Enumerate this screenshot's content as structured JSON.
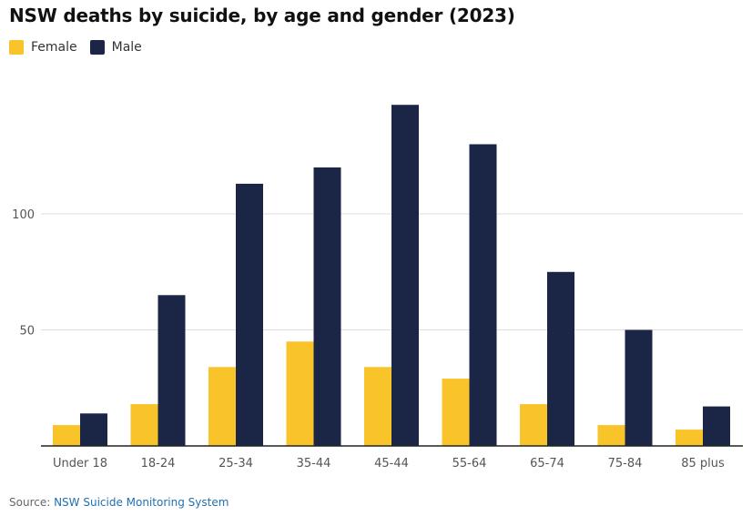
{
  "title": "NSW deaths by suicide, by age and gender (2023)",
  "legend": {
    "female_label": "Female",
    "male_label": "Male"
  },
  "colors": {
    "female": "#f9c32a",
    "male": "#1b2646",
    "grid": "#dddddd",
    "axis": "#222222",
    "tick_text": "#555555"
  },
  "source": {
    "prefix": "Source: ",
    "link_text": "NSW Suicide Monitoring System"
  },
  "chart_data": {
    "type": "bar",
    "title": "NSW deaths by suicide, by age and gender (2023)",
    "xlabel": "",
    "ylabel": "",
    "categories": [
      "Under 18",
      "18-24",
      "25-34",
      "35-44",
      "45-44",
      "55-64",
      "65-74",
      "75-84",
      "85 plus"
    ],
    "series": [
      {
        "name": "Female",
        "values": [
          9,
          18,
          34,
          45,
          34,
          29,
          18,
          9,
          7
        ]
      },
      {
        "name": "Male",
        "values": [
          14,
          65,
          113,
          120,
          147,
          130,
          75,
          50,
          17
        ]
      }
    ],
    "ylim": [
      0,
      147
    ],
    "yticks": [
      50,
      100
    ],
    "grid": true,
    "legend_position": "top-left"
  }
}
